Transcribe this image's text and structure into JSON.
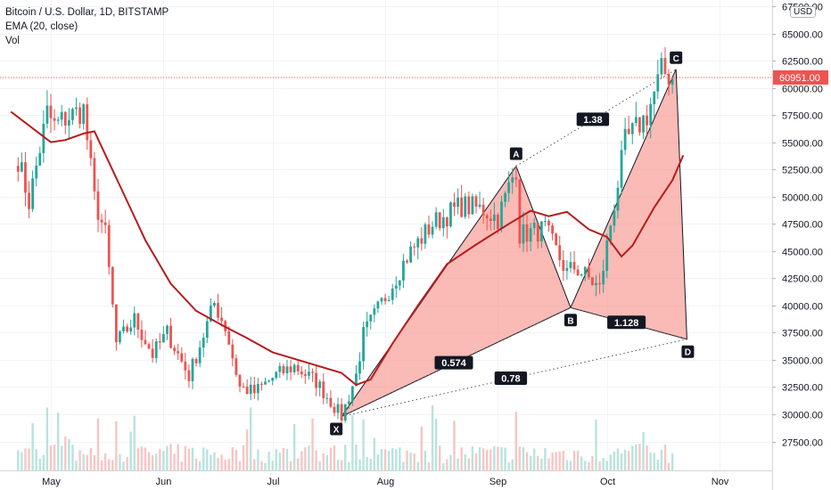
{
  "legend": {
    "symbol": "Bitcoin / U.S. Dollar, 1D, BITSTAMP",
    "ema": "EMA (20, close)",
    "vol": "Vol"
  },
  "currency": "USD",
  "colors": {
    "up": "#26a69a",
    "down": "#ef5350",
    "ema": "#b71c1c",
    "pattern_fill": "#f8a39c",
    "last_price": "#ef5350"
  },
  "chart_data": {
    "type": "candlestick",
    "title": "Bitcoin / U.S. Dollar, 1D, BITSTAMP",
    "ylim": [
      25000,
      67500
    ],
    "y_ticks": [
      "67500.00",
      "65000.00",
      "62500.00",
      "60000.00",
      "57500.00",
      "55000.00",
      "52500.00",
      "50000.00",
      "47500.00",
      "45000.00",
      "42500.00",
      "40000.00",
      "37500.00",
      "35000.00",
      "32500.00",
      "30000.00",
      "27500.00"
    ],
    "x_ticks": [
      "May",
      "Jun",
      "Jul",
      "Aug",
      "Sep",
      "Oct",
      "Nov"
    ],
    "last_price_label": "60951.00",
    "last_price": 60951,
    "price_path": [
      [
        "2021-04-22",
        53500
      ],
      [
        "2021-04-25",
        49500
      ],
      [
        "2021-04-30",
        57700
      ],
      [
        "2021-05-02",
        56500
      ],
      [
        "2021-05-05",
        57200
      ],
      [
        "2021-05-10",
        58000
      ],
      [
        "2021-05-13",
        49800
      ],
      [
        "2021-05-16",
        46500
      ],
      [
        "2021-05-19",
        36500
      ],
      [
        "2021-05-24",
        38700
      ],
      [
        "2021-05-29",
        35500
      ],
      [
        "2021-06-02",
        37500
      ],
      [
        "2021-06-08",
        33500
      ],
      [
        "2021-06-12",
        37300
      ],
      [
        "2021-06-15",
        40200
      ],
      [
        "2021-06-18",
        38000
      ],
      [
        "2021-06-22",
        32500
      ],
      [
        "2021-06-26",
        32000
      ],
      [
        "2021-07-02",
        33600
      ],
      [
        "2021-07-07",
        34400
      ],
      [
        "2021-07-13",
        33000
      ],
      [
        "2021-07-20",
        29800
      ],
      [
        "2021-07-24",
        33600
      ],
      [
        "2021-07-26",
        37300
      ],
      [
        "2021-08-01",
        40800
      ],
      [
        "2021-08-07",
        44500
      ],
      [
        "2021-08-14",
        47500
      ],
      [
        "2021-08-22",
        49200
      ],
      [
        "2021-08-28",
        48800
      ],
      [
        "2021-09-01",
        48000
      ],
      [
        "2021-09-06",
        52700
      ],
      [
        "2021-09-07",
        46500
      ],
      [
        "2021-09-14",
        47000
      ],
      [
        "2021-09-20",
        43000
      ],
      [
        "2021-09-22",
        43500
      ],
      [
        "2021-09-25",
        42800
      ],
      [
        "2021-09-29",
        41500
      ],
      [
        "2021-10-02",
        47500
      ],
      [
        "2021-10-06",
        55000
      ],
      [
        "2021-10-12",
        57500
      ],
      [
        "2021-10-16",
        61500
      ],
      [
        "2021-10-19",
        61000
      ]
    ],
    "ema": {
      "name": "EMA (20, close)",
      "points": [
        [
          "2021-04-20",
          57800
        ],
        [
          "2021-05-01",
          55000
        ],
        [
          "2021-05-05",
          55200
        ],
        [
          "2021-05-10",
          55800
        ],
        [
          "2021-05-13",
          56000
        ],
        [
          "2021-05-20",
          51000
        ],
        [
          "2021-05-27",
          46000
        ],
        [
          "2021-06-03",
          42000
        ],
        [
          "2021-06-10",
          39500
        ],
        [
          "2021-06-17",
          38200
        ],
        [
          "2021-06-24",
          37000
        ],
        [
          "2021-07-01",
          35700
        ],
        [
          "2021-07-10",
          34800
        ],
        [
          "2021-07-20",
          33800
        ],
        [
          "2021-07-24",
          32700
        ],
        [
          "2021-07-28",
          33200
        ],
        [
          "2021-08-03",
          36500
        ],
        [
          "2021-08-10",
          40000
        ],
        [
          "2021-08-18",
          43800
        ],
        [
          "2021-08-26",
          45600
        ],
        [
          "2021-09-04",
          47500
        ],
        [
          "2021-09-10",
          48700
        ],
        [
          "2021-09-15",
          48200
        ],
        [
          "2021-09-20",
          48600
        ],
        [
          "2021-09-26",
          47000
        ],
        [
          "2021-10-01",
          46300
        ],
        [
          "2021-10-05",
          44500
        ],
        [
          "2021-10-08",
          45500
        ],
        [
          "2021-10-14",
          49000
        ],
        [
          "2021-10-19",
          51500
        ],
        [
          "2021-10-22",
          53800
        ]
      ]
    },
    "harmonic_pattern": {
      "points": [
        {
          "label": "X",
          "x": "2021-07-20",
          "y": 29800
        },
        {
          "label": "A",
          "x": "2021-09-06",
          "y": 52800
        },
        {
          "label": "B",
          "x": "2021-09-21",
          "y": 39800
        },
        {
          "label": "C",
          "x": "2021-10-20",
          "y": 61700
        },
        {
          "label": "D",
          "x": "2021-10-23",
          "y": 36900
        }
      ],
      "ratios": [
        {
          "label": "0.574",
          "value": 0.574,
          "between": [
            "X",
            "B"
          ]
        },
        {
          "label": "1.38",
          "value": 1.38,
          "between": [
            "A",
            "C"
          ]
        },
        {
          "label": "1.128",
          "value": 1.128,
          "between": [
            "B",
            "D"
          ]
        },
        {
          "label": "0.78",
          "value": 0.78,
          "between": [
            "X",
            "D"
          ]
        }
      ]
    }
  }
}
